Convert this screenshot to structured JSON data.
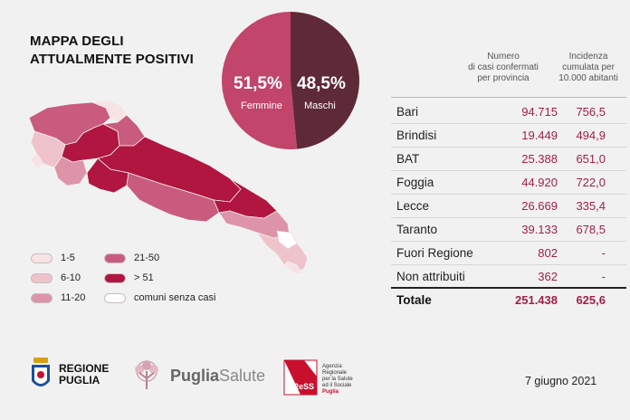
{
  "title": {
    "line1": "MAPPA DEGLI",
    "line2": "ATTUALMENTE POSITIVI"
  },
  "gender": {
    "female_pct": "51,5%",
    "female_label": "Femmine",
    "male_pct": "48,5%",
    "male_label": "Maschi",
    "female_share": 51.5,
    "male_share": 48.5,
    "female_color": "#c2456b",
    "male_color": "#5e2a38"
  },
  "legend": {
    "items": [
      {
        "label": "1-5",
        "color": "#f7e2e4"
      },
      {
        "label": "6-10",
        "color": "#efc3cc"
      },
      {
        "label": "11-20",
        "color": "#dd94a9"
      },
      {
        "label": "21-50",
        "color": "#c85b7e"
      },
      {
        "label": "> 51",
        "color": "#b0163f"
      },
      {
        "label": "comuni senza casi",
        "color": "#ffffff"
      }
    ]
  },
  "table": {
    "col1_header": [
      "Numero",
      "di casi confermati",
      "per provincia"
    ],
    "col2_header": [
      "Incidenza",
      "cumulata per",
      "10.000 abitanti"
    ],
    "rows": [
      {
        "name": "Bari",
        "cases": "94.715",
        "incidence": "756,5"
      },
      {
        "name": "Brindisi",
        "cases": "19.449",
        "incidence": "494,9"
      },
      {
        "name": "BAT",
        "cases": "25.388",
        "incidence": "651,0"
      },
      {
        "name": "Foggia",
        "cases": "44.920",
        "incidence": "722,0"
      },
      {
        "name": "Lecce",
        "cases": "26.669",
        "incidence": "335,4"
      },
      {
        "name": "Taranto",
        "cases": "39.133",
        "incidence": "678,5"
      },
      {
        "name": "Fuori Regione",
        "cases": "802",
        "incidence": "-"
      },
      {
        "name": "Non attribuiti",
        "cases": "362",
        "incidence": "-"
      }
    ],
    "total": {
      "name": "Totale",
      "cases": "251.438",
      "incidence": "625,6"
    }
  },
  "footer": {
    "regione_line1": "REGIONE",
    "regione_line2": "PUGLIA",
    "puglia_salute_bold": "Puglia",
    "puglia_salute_light": "Salute",
    "aress_mark": "AReSS",
    "aress_text": [
      "Agenzia",
      "Regionale",
      "per la Salute",
      "ed il Sociale",
      "Puglia"
    ],
    "date": "7 giugno 2021"
  }
}
